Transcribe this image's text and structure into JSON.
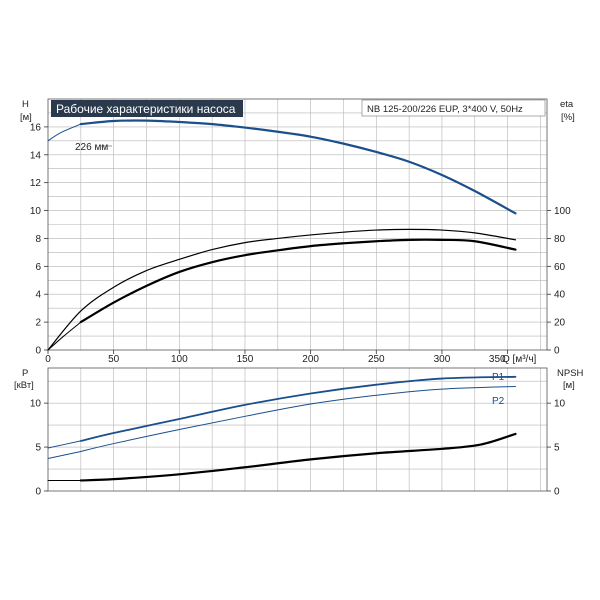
{
  "chart_data": [
    {
      "type": "line",
      "title": "Рабочие характеристики насоса",
      "subtitle": "NB 125-200/226 EUP, 3*400 V, 50Hz",
      "left_axis": {
        "label": "H",
        "unit": "[м]",
        "range": [
          0,
          18
        ],
        "ticks": [
          "0",
          "2",
          "4",
          "6",
          "8",
          "10",
          "12",
          "14",
          "16"
        ]
      },
      "right_axis": {
        "label": "eta",
        "unit": "[%]",
        "range": [
          0,
          180
        ],
        "ticks": [
          "0",
          "20",
          "40",
          "60",
          "80",
          "100"
        ]
      },
      "x_axis": {
        "label": "Q [м³/ч]",
        "range": [
          0,
          380
        ],
        "ticks": [
          "0",
          "50",
          "100",
          "150",
          "200",
          "250",
          "300",
          "350"
        ]
      },
      "grid": true,
      "annotation": "226 мм",
      "series": [
        {
          "id": "head",
          "axis": "left",
          "color": "#1a4f8c",
          "width": 2.2,
          "x": [
            25,
            50,
            75,
            100,
            125,
            150,
            175,
            200,
            225,
            250,
            275,
            300,
            325,
            356
          ],
          "y": [
            16.2,
            16.42,
            16.45,
            16.35,
            16.2,
            15.95,
            15.65,
            15.3,
            14.8,
            14.2,
            13.5,
            12.55,
            11.4,
            9.8
          ]
        },
        {
          "id": "head-extension",
          "axis": "left",
          "color": "#1a4f8c",
          "width": 1.0,
          "x": [
            0,
            10,
            25
          ],
          "y": [
            15.0,
            15.6,
            16.2
          ]
        },
        {
          "id": "eta-upper",
          "axis": "right",
          "color": "#000000",
          "width": 1.2,
          "x": [
            0,
            25,
            50,
            75,
            100,
            125,
            150,
            175,
            200,
            225,
            250,
            275,
            300,
            325,
            356
          ],
          "y": [
            0,
            28,
            45,
            57,
            65,
            72,
            77,
            80,
            82.5,
            84.5,
            86,
            86.5,
            86,
            84,
            79
          ]
        },
        {
          "id": "eta-lower",
          "axis": "right",
          "color": "#000000",
          "width": 2.2,
          "x": [
            25,
            50,
            75,
            100,
            125,
            150,
            175,
            200,
            225,
            250,
            275,
            300,
            325,
            356
          ],
          "y": [
            20,
            34,
            46,
            56,
            63,
            68,
            71.5,
            74.5,
            76.5,
            78,
            79,
            79,
            78,
            72
          ]
        },
        {
          "id": "eta-lower-extension",
          "axis": "right",
          "color": "#000000",
          "width": 1.0,
          "x": [
            0,
            12,
            25
          ],
          "y": [
            0,
            10,
            20
          ]
        }
      ]
    },
    {
      "type": "line",
      "left_axis": {
        "label": "P",
        "unit": "[кВт]",
        "range": [
          0,
          14
        ],
        "ticks": [
          "0",
          "5",
          "10"
        ]
      },
      "right_axis": {
        "label": "NPSH",
        "unit": "[м]",
        "range": [
          0,
          14
        ],
        "ticks": [
          "0",
          "5",
          "10"
        ]
      },
      "x_axis": {
        "range": [
          0,
          380
        ]
      },
      "grid": true,
      "series": [
        {
          "id": "P1",
          "name": "P1",
          "axis": "left",
          "color": "#1a4f8c",
          "width": 1.8,
          "x": [
            25,
            50,
            100,
            150,
            200,
            250,
            300,
            356
          ],
          "y": [
            5.7,
            6.6,
            8.2,
            9.8,
            11.1,
            12.1,
            12.8,
            13.0
          ]
        },
        {
          "id": "P1-extension",
          "axis": "left",
          "color": "#1a4f8c",
          "width": 1.0,
          "x": [
            0,
            25
          ],
          "y": [
            4.9,
            5.7
          ]
        },
        {
          "id": "P2",
          "name": "P2",
          "axis": "left",
          "color": "#1a4f8c",
          "width": 1.0,
          "x": [
            25,
            50,
            100,
            150,
            200,
            250,
            300,
            356
          ],
          "y": [
            4.5,
            5.4,
            7.0,
            8.5,
            9.9,
            10.9,
            11.6,
            11.9
          ]
        },
        {
          "id": "P2-extension",
          "axis": "left",
          "color": "#1a4f8c",
          "width": 1.0,
          "x": [
            0,
            25
          ],
          "y": [
            3.7,
            4.5
          ]
        },
        {
          "id": "NPSH",
          "axis": "right",
          "color": "#000000",
          "width": 2.2,
          "x": [
            25,
            50,
            100,
            150,
            200,
            250,
            300,
            330,
            356
          ],
          "y": [
            1.2,
            1.35,
            1.9,
            2.7,
            3.6,
            4.3,
            4.8,
            5.3,
            6.5
          ]
        },
        {
          "id": "NPSH-extension",
          "axis": "right",
          "color": "#000000",
          "width": 1.0,
          "x": [
            0,
            25
          ],
          "y": [
            1.2,
            1.2
          ]
        }
      ]
    }
  ]
}
